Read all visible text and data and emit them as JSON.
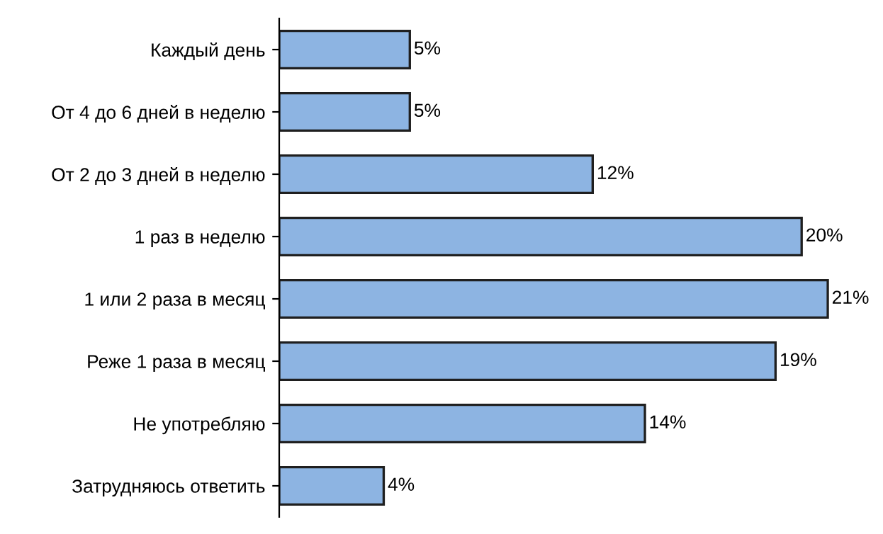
{
  "chart_data": {
    "type": "bar",
    "orientation": "horizontal",
    "categories": [
      "Каждый день",
      "От 4 до 6 дней в неделю",
      "От 2 до 3 дней в неделю",
      "1 раз в неделю",
      "1 или 2 раза в месяц",
      "Реже 1 раза в месяц",
      "Не употребляю",
      "Затрудняюсь ответить"
    ],
    "values": [
      5,
      5,
      12,
      20,
      21,
      19,
      14,
      4
    ],
    "value_labels": [
      "5%",
      "5%",
      "12%",
      "20%",
      "21%",
      "19%",
      "14%",
      "4%"
    ],
    "color": "#8db4e2",
    "grid": false,
    "legend": false
  }
}
